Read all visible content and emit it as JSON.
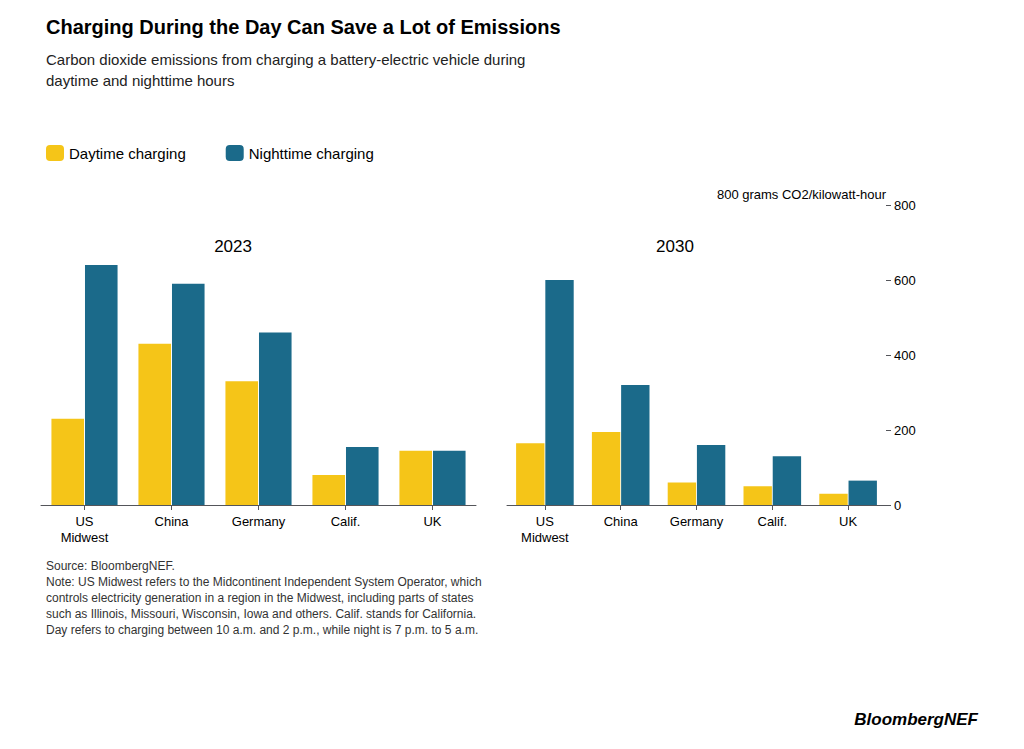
{
  "title": "Charging During the Day Can Save a Lot of Emissions",
  "subtitle": "Carbon dioxide emissions from charging a battery-electric vehicle during\ndaytime and nighttime hours",
  "legend": "upper left",
  "annotations": [
    "800 grams CO2/kilowatt-hour",
    "Source: BloombergNEF.\nNote: US Midwest refers to the Midcontinent Independent System Operator, which\ncontrols electricity generation in a region in the Midwest, including parts of states\nsuch as Illinois, Missouri, Wisconsin, Iowa and others. Calif. stands for California.\nDay refers to charging between 10 a.m. and 2 p.m., while night is 7 p.m. to 5 a.m.",
    "BloombergNEF"
  ],
  "chart_data": [
    {
      "type": "bar",
      "title": "2023",
      "categories": [
        "US\nMidwest",
        "China",
        "Germany",
        "Calif.",
        "UK"
      ],
      "series": [
        {
          "name": "Daytime charging",
          "color": "#F5C518",
          "values": [
            230,
            430,
            330,
            80,
            145
          ]
        },
        {
          "name": "Nighttime charging",
          "color": "#1B6A8A",
          "values": [
            640,
            590,
            460,
            155,
            145
          ]
        }
      ],
      "ylim": [
        0,
        800
      ],
      "yticks": [
        0,
        200,
        400,
        600,
        800
      ],
      "tick_labels": "x",
      "grid": false
    },
    {
      "type": "bar",
      "title": "2030",
      "categories": [
        "US\nMidwest",
        "China",
        "Germany",
        "Calif.",
        "UK"
      ],
      "series": [
        {
          "name": "Daytime charging",
          "color": "#F5C518",
          "values": [
            165,
            195,
            60,
            50,
            30
          ]
        },
        {
          "name": "Nighttime charging",
          "color": "#1B6A8A",
          "values": [
            600,
            320,
            160,
            130,
            65
          ]
        }
      ],
      "ylim": [
        0,
        800
      ],
      "yticks": [
        0,
        200,
        400,
        600,
        800
      ],
      "grid": false
    }
  ]
}
